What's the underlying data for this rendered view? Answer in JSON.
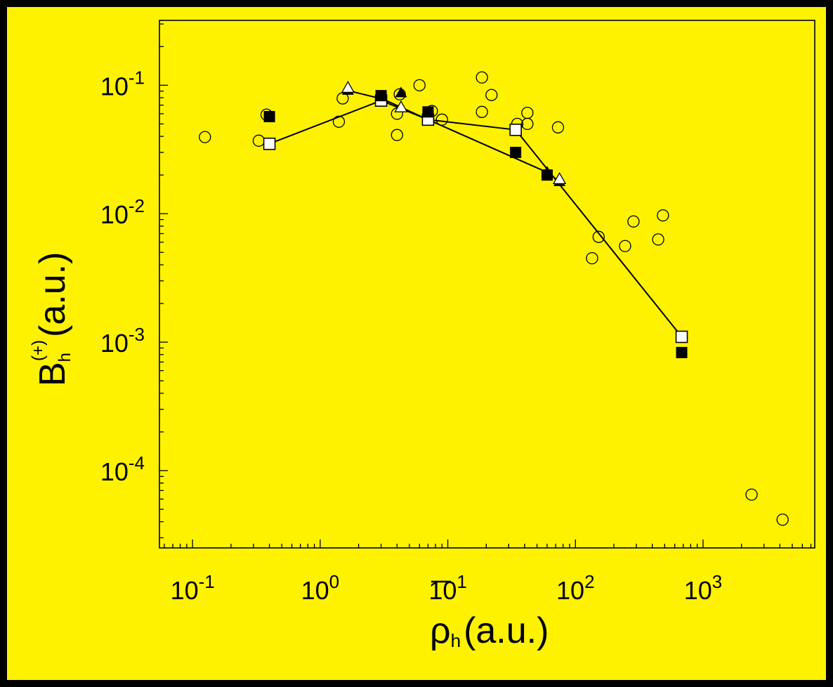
{
  "chart_data": {
    "type": "scatter",
    "title": "",
    "xlabel": "ρ",
    "xlabel_sub": "h",
    "xlabel_unit": "(a.u.)",
    "ylabel": "B",
    "ylabel_sub": "h",
    "ylabel_sup": "(+)",
    "ylabel_unit": "(a.u.)",
    "x_scale": "log",
    "y_scale": "log",
    "xlim": [
      0.055,
      7500
    ],
    "ylim": [
      2.5e-05,
      0.32
    ],
    "grid": false,
    "legend": "none",
    "x_ticks": [
      {
        "value": 0.1,
        "base": "10",
        "exp": "-1"
      },
      {
        "value": 1,
        "base": "10",
        "exp": "0"
      },
      {
        "value": 10,
        "base": "10",
        "exp": "1"
      },
      {
        "value": 100,
        "base": "10",
        "exp": "2"
      },
      {
        "value": 1000,
        "base": "10",
        "exp": "3"
      }
    ],
    "y_ticks": [
      {
        "value": 0.1,
        "base": "10",
        "exp": "-1"
      },
      {
        "value": 0.01,
        "base": "10",
        "exp": "-2"
      },
      {
        "value": 0.001,
        "base": "10",
        "exp": "-3"
      },
      {
        "value": 0.0001,
        "base": "10",
        "exp": "-4"
      }
    ],
    "colors": {
      "background": "#FFF200",
      "border": "#000000",
      "ink": "#000000",
      "open_fill": "#FFFFFF"
    },
    "series": [
      {
        "marker": "open-circle",
        "line": false,
        "points": [
          [
            0.125,
            0.0395
          ],
          [
            0.33,
            0.037
          ],
          [
            0.38,
            0.059
          ],
          [
            1.4,
            0.052
          ],
          [
            1.5,
            0.079
          ],
          [
            3.0,
            0.076
          ],
          [
            4.0,
            0.06
          ],
          [
            4.0,
            0.041
          ],
          [
            4.2,
            0.085
          ],
          [
            6.0,
            0.1
          ],
          [
            7.5,
            0.063
          ],
          [
            9.0,
            0.054
          ],
          [
            18.5,
            0.115
          ],
          [
            18.5,
            0.062
          ],
          [
            22.0,
            0.084
          ],
          [
            35.0,
            0.05
          ],
          [
            42.0,
            0.061
          ],
          [
            42.0,
            0.05
          ],
          [
            73.0,
            0.047
          ],
          [
            135.0,
            0.0045
          ],
          [
            152.0,
            0.0066
          ],
          [
            245.0,
            0.0056
          ],
          [
            285.0,
            0.0087
          ],
          [
            445.0,
            0.0063
          ],
          [
            485.0,
            0.0097
          ],
          [
            2400.0,
            6.5e-05
          ],
          [
            4200.0,
            4.15e-05
          ]
        ]
      },
      {
        "marker": "filled-triangle",
        "line": true,
        "points": [
          [
            1.65,
            0.091
          ],
          [
            3.1,
            0.078
          ],
          [
            7.0,
            0.054
          ],
          [
            60.0,
            0.021
          ],
          [
            75.0,
            0.0177
          ]
        ]
      },
      {
        "marker": "open-triangle",
        "line": false,
        "points": [
          [
            1.65,
            0.095
          ],
          [
            4.3,
            0.067
          ],
          [
            75.0,
            0.0185
          ]
        ]
      },
      {
        "marker": "filled-triangle",
        "line": false,
        "points": [
          [
            4.3,
            0.087
          ]
        ]
      },
      {
        "marker": "open-square",
        "line": true,
        "points": [
          [
            0.4,
            0.035
          ],
          [
            3.0,
            0.076
          ],
          [
            7.0,
            0.054
          ],
          [
            34.0,
            0.045
          ],
          [
            680.0,
            0.0011
          ]
        ]
      },
      {
        "marker": "filled-square",
        "line": false,
        "points": [
          [
            0.4,
            0.057
          ],
          [
            3.0,
            0.083
          ],
          [
            7.0,
            0.062
          ],
          [
            34.0,
            0.03
          ],
          [
            60.0,
            0.02
          ],
          [
            680.0,
            0.00083
          ]
        ]
      }
    ]
  }
}
